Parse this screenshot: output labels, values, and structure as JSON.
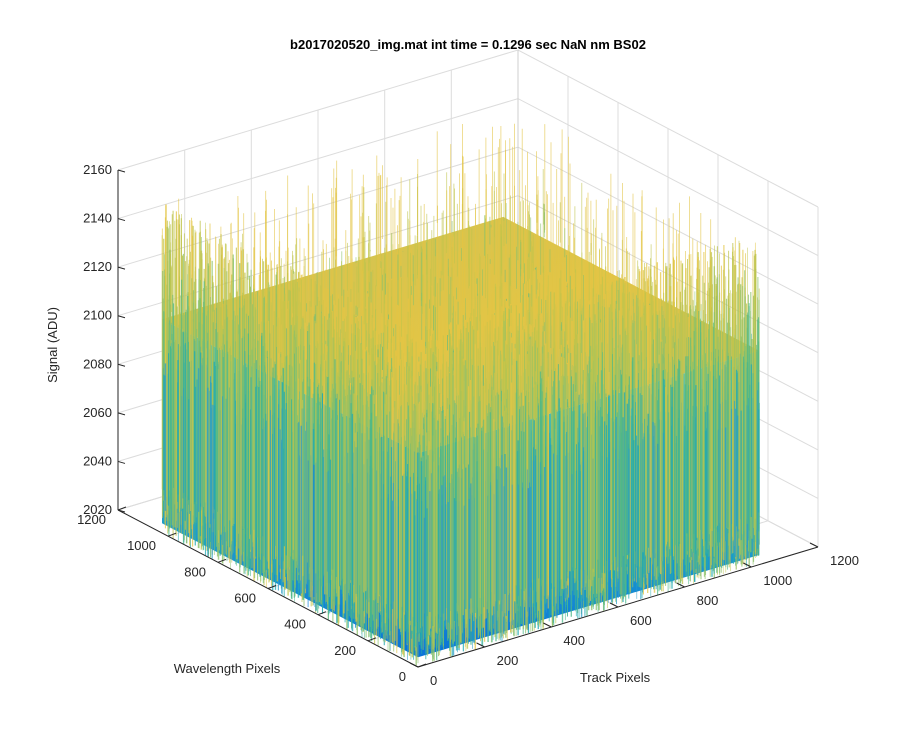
{
  "chart_data": {
    "type": "surface",
    "title": "b2017020520_img.mat int time = 0.1296 sec  NaN nm BS02",
    "xlabel": "Track Pixels",
    "ylabel": "Wavelength Pixels",
    "zlabel": "Signal (ADU)",
    "xlim": [
      0,
      1200
    ],
    "ylim": [
      0,
      1200
    ],
    "zlim": [
      2020,
      2160
    ],
    "x_ticks": [
      "0",
      "200",
      "400",
      "600",
      "800",
      "1000",
      "1200"
    ],
    "y_ticks": [
      "0",
      "200",
      "400",
      "600",
      "800",
      "1000",
      "1200"
    ],
    "z_ticks": [
      "2020",
      "2040",
      "2060",
      "2080",
      "2100",
      "2120",
      "2140",
      "2160"
    ],
    "x_extent": [
      0,
      1024
    ],
    "y_extent": [
      0,
      1024
    ],
    "z_range": [
      2020,
      2158
    ],
    "grid": true,
    "colormap": "parula",
    "colors": {
      "low": "#0a72d8",
      "mid": "#20b2a4",
      "high": "#e0c040",
      "axis": "#262626",
      "grid": "#dcdcdc"
    }
  }
}
